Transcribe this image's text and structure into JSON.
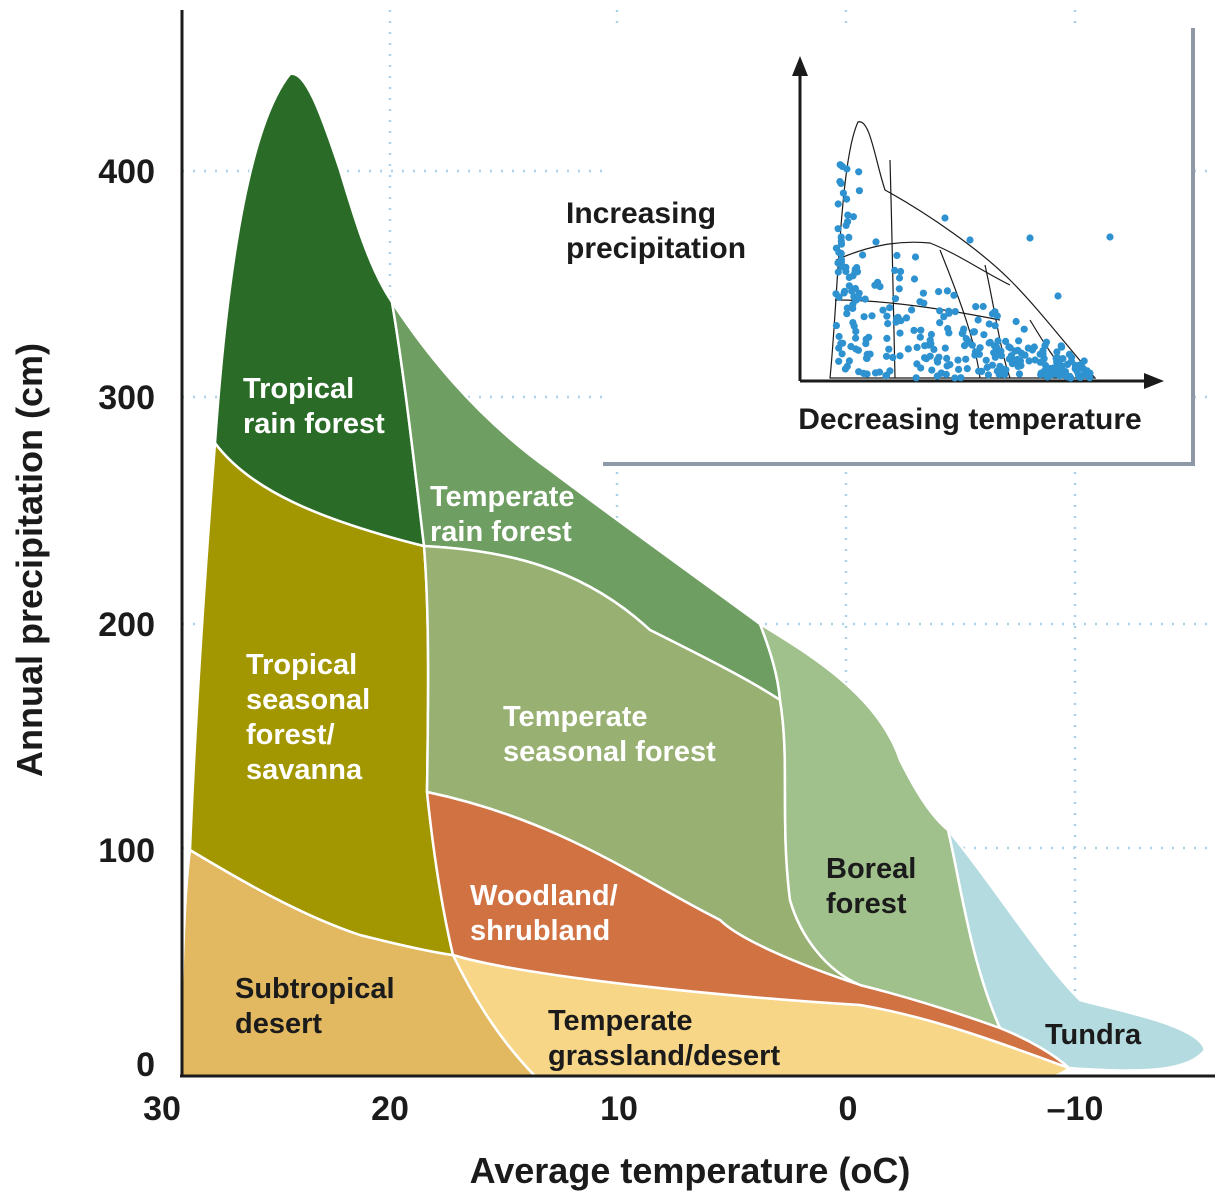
{
  "chart_data": {
    "type": "area",
    "xlabel": "Average temperature (oC)",
    "ylabel": "Annual precipitation (cm)",
    "x_ticks": [
      "30",
      "20",
      "10",
      "0",
      "–10"
    ],
    "y_ticks": [
      "0",
      "100",
      "200",
      "300",
      "400"
    ],
    "biomes": [
      {
        "name": "Tropical rain forest",
        "lines": [
          "Tropical",
          "rain forest"
        ],
        "color": "#2a6c27",
        "text_color": "#ffffff"
      },
      {
        "name": "Temperate rain forest",
        "lines": [
          "Temperate",
          "rain forest"
        ],
        "color": "#6e9e61",
        "text_color": "#ffffff"
      },
      {
        "name": "Tropical seasonal forest/savanna",
        "lines": [
          "Tropical",
          "seasonal",
          "forest/",
          "savanna"
        ],
        "color": "#a29700",
        "text_color": "#ffffff"
      },
      {
        "name": "Temperate seasonal forest",
        "lines": [
          "Temperate",
          "seasonal forest"
        ],
        "color": "#98b173",
        "text_color": "#ffffff"
      },
      {
        "name": "Woodland/shrubland",
        "lines": [
          "Woodland/",
          "shrubland"
        ],
        "color": "#d17243",
        "text_color": "#ffffff"
      },
      {
        "name": "Boreal forest",
        "lines": [
          "Boreal",
          "forest"
        ],
        "color": "#a0c08c",
        "text_color": "#1b1b1b"
      },
      {
        "name": "Subtropical desert",
        "lines": [
          "Subtropical",
          "desert"
        ],
        "color": "#e2b860",
        "text_color": "#1b1b1b"
      },
      {
        "name": "Temperate grassland/desert",
        "lines": [
          "Temperate",
          "grassland/desert"
        ],
        "color": "#f8d687",
        "text_color": "#1b1b1b"
      },
      {
        "name": "Tundra",
        "lines": [
          "Tundra"
        ],
        "color": "#b3dbe0",
        "text_color": "#1b1b1b"
      }
    ],
    "grid": true
  },
  "inset": {
    "y_label_lines": [
      "Increasing",
      "precipitation"
    ],
    "x_label": "Decreasing temperature",
    "point_color": "#2e92d0"
  }
}
